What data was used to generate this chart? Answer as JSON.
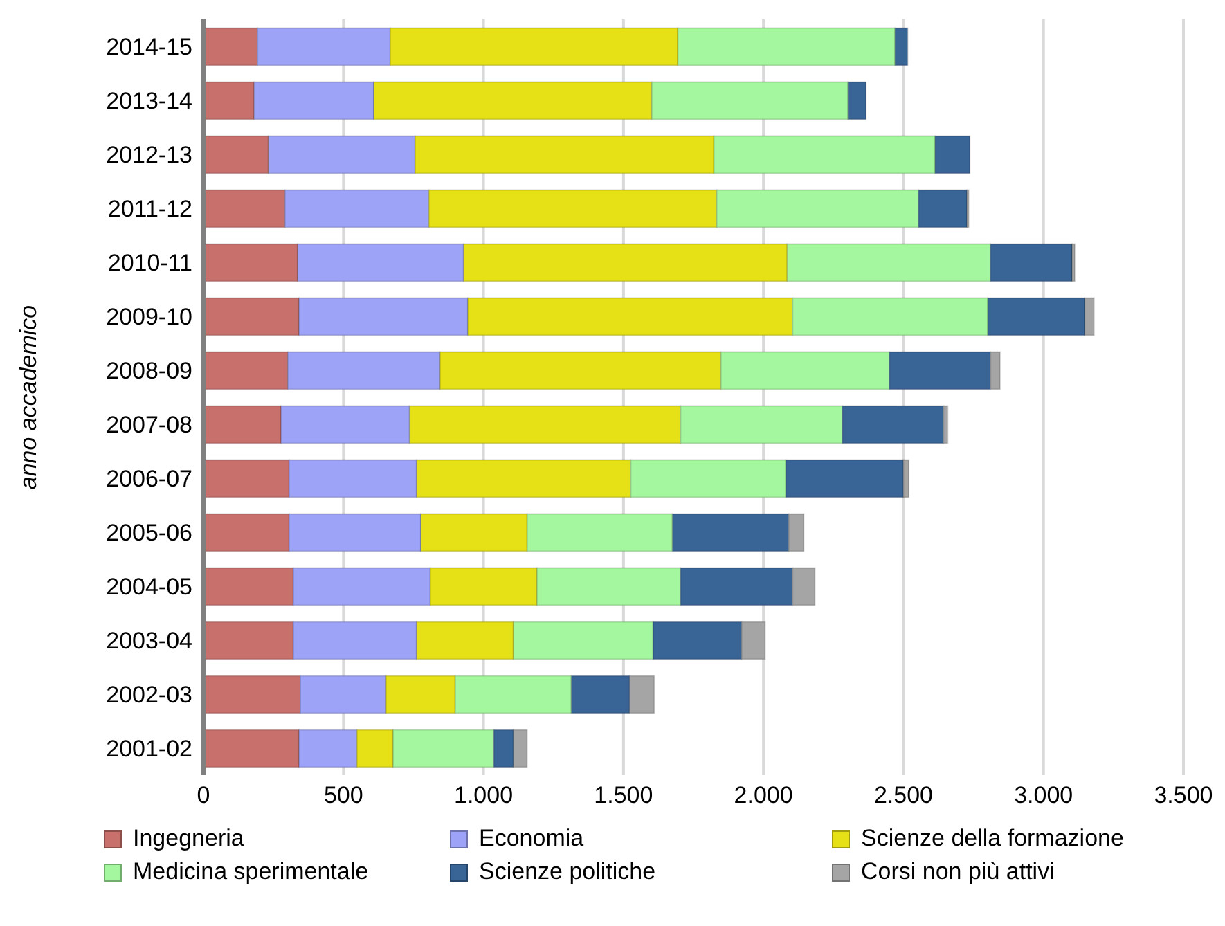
{
  "chart_data": {
    "type": "bar",
    "orientation": "horizontal",
    "stacked": true,
    "ylabel": "anno accademico",
    "categories": [
      "2014-15",
      "2013-14",
      "2012-13",
      "2011-12",
      "2010-11",
      "2009-10",
      "2008-09",
      "2007-08",
      "2006-07",
      "2005-06",
      "2004-05",
      "2003-04",
      "2002-03",
      "2001-02"
    ],
    "series": [
      {
        "name": "Ingegneria",
        "color": "#c8706c",
        "values": [
          193,
          181,
          232,
          291,
          336,
          341,
          301,
          277,
          306,
          306,
          321,
          321,
          346,
          341
        ]
      },
      {
        "name": "Economia",
        "color": "#9da4f8",
        "values": [
          474,
          427,
          524,
          514,
          593,
          603,
          544,
          459,
          455,
          470,
          489,
          440,
          306,
          207
        ]
      },
      {
        "name": "Scienze della formazione",
        "color": "#e6e016",
        "values": [
          1027,
          993,
          1067,
          1028,
          1156,
          1160,
          1003,
          968,
          765,
          380,
          381,
          346,
          247,
          129
        ]
      },
      {
        "name": "Medicina sperimentale",
        "color": "#a5f79f",
        "values": [
          776,
          701,
          790,
          721,
          726,
          697,
          602,
          578,
          554,
          519,
          513,
          499,
          415,
          360
        ]
      },
      {
        "name": "Scienze politiche",
        "color": "#386496",
        "values": [
          45,
          64,
          124,
          173,
          291,
          346,
          361,
          361,
          420,
          415,
          400,
          316,
          208,
          70
        ]
      },
      {
        "name": "Corsi non più attivi",
        "color": "#a5a5a5",
        "values": [
          0,
          0,
          0,
          6,
          10,
          34,
          34,
          15,
          19,
          54,
          80,
          84,
          88,
          49
        ]
      }
    ],
    "xlim": [
      0,
      3500
    ],
    "xticks": [
      0,
      500,
      {
        "value": 1000,
        "label": "1.000"
      },
      {
        "value": 1500,
        "label": "1.500"
      },
      {
        "value": 2000,
        "label": "2.000"
      },
      {
        "value": 2500,
        "label": "2.500"
      },
      {
        "value": 3000,
        "label": "3.000"
      },
      {
        "value": 3500,
        "label": "3.500"
      }
    ],
    "grid": "x",
    "legend": "bottom"
  }
}
